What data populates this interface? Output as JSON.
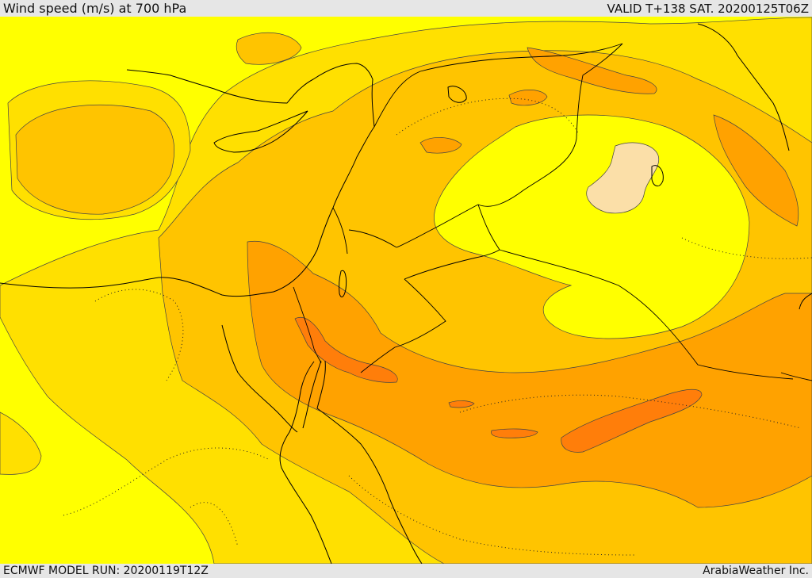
{
  "header": {
    "title": "Wind speed (m/s) at 700 hPa",
    "valid_time": "VALID T+138 SAT. 20200125T06Z"
  },
  "footer": {
    "model_run": "ECMWF MODEL RUN: 20200119T12Z",
    "credit": "ArabiaWeather Inc."
  },
  "map": {
    "variable": "wind speed",
    "level": "700 hPa",
    "shading_colors": {
      "lowest": "#ffff00",
      "low": "#ffe000",
      "medium": "#ffc400",
      "high": "#ffa200",
      "highest": "#ff7e0a",
      "calm": "#fbdfa8"
    }
  }
}
